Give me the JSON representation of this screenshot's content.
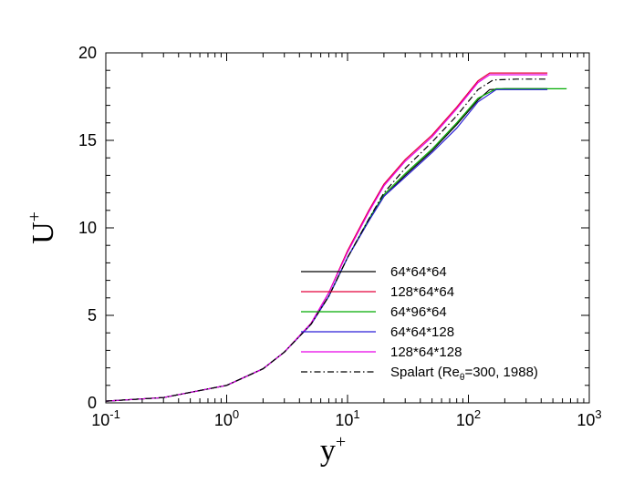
{
  "chart_data": {
    "type": "line",
    "title": "",
    "xlabel": {
      "base": "y",
      "sup": "+"
    },
    "ylabel": {
      "base": "U",
      "sup": "+"
    },
    "xscale": "log",
    "xlim": [
      0.1,
      1000
    ],
    "ylim": [
      0,
      20
    ],
    "grid": false,
    "legend_position": "lower-right",
    "x_ticks": [
      {
        "base": "10",
        "exp": "-1",
        "value": 0.1
      },
      {
        "base": "10",
        "exp": "0",
        "value": 1
      },
      {
        "base": "10",
        "exp": "1",
        "value": 10
      },
      {
        "base": "10",
        "exp": "2",
        "value": 100
      },
      {
        "base": "10",
        "exp": "3",
        "value": 1000
      }
    ],
    "y_ticks": [
      {
        "label": "0",
        "value": 0
      },
      {
        "label": "5",
        "value": 5
      },
      {
        "label": "10",
        "value": 10
      },
      {
        "label": "15",
        "value": 15
      },
      {
        "label": "20",
        "value": 20
      }
    ],
    "series": [
      {
        "name": "64*64*64",
        "color": "#000000",
        "dash": "solid",
        "x": [
          0.1,
          0.3,
          1,
          2,
          3,
          5,
          7,
          10,
          15,
          20,
          30,
          50,
          80,
          120,
          150,
          200,
          300,
          450
        ],
        "y": [
          0.1,
          0.3,
          1.0,
          1.95,
          2.9,
          4.5,
          6.1,
          8.3,
          10.4,
          11.8,
          13.0,
          14.4,
          15.9,
          17.3,
          17.9,
          17.95,
          17.95,
          17.95
        ]
      },
      {
        "name": "128*64*64",
        "color": "#e4003a",
        "dash": "solid",
        "x": [
          0.1,
          0.3,
          1,
          2,
          3,
          5,
          7,
          10,
          15,
          20,
          30,
          50,
          80,
          120,
          150,
          200,
          300,
          450
        ],
        "y": [
          0.1,
          0.3,
          1.0,
          1.95,
          2.9,
          4.55,
          6.3,
          8.7,
          11.0,
          12.5,
          13.9,
          15.3,
          16.9,
          18.4,
          18.85,
          18.85,
          18.85,
          18.85
        ]
      },
      {
        "name": "64*96*64",
        "color": "#00aa00",
        "dash": "solid",
        "x": [
          0.1,
          0.3,
          1,
          2,
          3,
          5,
          7,
          10,
          15,
          20,
          30,
          50,
          80,
          120,
          170,
          250,
          400,
          650
        ],
        "y": [
          0.1,
          0.3,
          1.0,
          1.95,
          2.9,
          4.5,
          6.1,
          8.3,
          10.5,
          11.9,
          13.1,
          14.5,
          16.0,
          17.4,
          17.95,
          17.95,
          17.95,
          17.95
        ]
      },
      {
        "name": "64*64*128",
        "color": "#2b1fd6",
        "dash": "solid",
        "x": [
          0.1,
          0.3,
          1,
          2,
          3,
          5,
          7,
          10,
          15,
          20,
          30,
          50,
          80,
          120,
          170,
          250,
          450
        ],
        "y": [
          0.1,
          0.3,
          1.0,
          1.95,
          2.9,
          4.5,
          6.1,
          8.3,
          10.4,
          11.8,
          12.9,
          14.3,
          15.7,
          17.2,
          17.9,
          17.9,
          17.9
        ]
      },
      {
        "name": "128*64*128",
        "color": "#e600e6",
        "dash": "solid",
        "x": [
          0.1,
          0.3,
          1,
          2,
          3,
          5,
          7,
          10,
          15,
          20,
          30,
          50,
          80,
          120,
          150,
          200,
          300,
          450
        ],
        "y": [
          0.1,
          0.3,
          1.0,
          1.95,
          2.9,
          4.55,
          6.3,
          8.6,
          10.9,
          12.4,
          13.8,
          15.2,
          16.8,
          18.3,
          18.75,
          18.75,
          18.75,
          18.75
        ]
      },
      {
        "name": "Spalart (Reθ=300, 1988)",
        "color": "#000000",
        "dash": "dashdot",
        "x": [
          0.1,
          0.3,
          1,
          2,
          3,
          5,
          7,
          10,
          15,
          20,
          30,
          50,
          80,
          120,
          160,
          250,
          450
        ],
        "y": [
          0.1,
          0.3,
          1.0,
          1.95,
          2.9,
          4.5,
          6.1,
          8.3,
          10.5,
          12.0,
          13.4,
          14.9,
          16.4,
          17.9,
          18.45,
          18.5,
          18.5
        ]
      }
    ],
    "legend": [
      {
        "label": "64*64*64"
      },
      {
        "label": "128*64*64"
      },
      {
        "label": "64*96*64"
      },
      {
        "label": "64*64*128"
      },
      {
        "label": "128*64*128"
      },
      {
        "label_main": "Spalart (Re",
        "label_sub": "θ",
        "label_rest": "=300, 1988)"
      }
    ]
  }
}
